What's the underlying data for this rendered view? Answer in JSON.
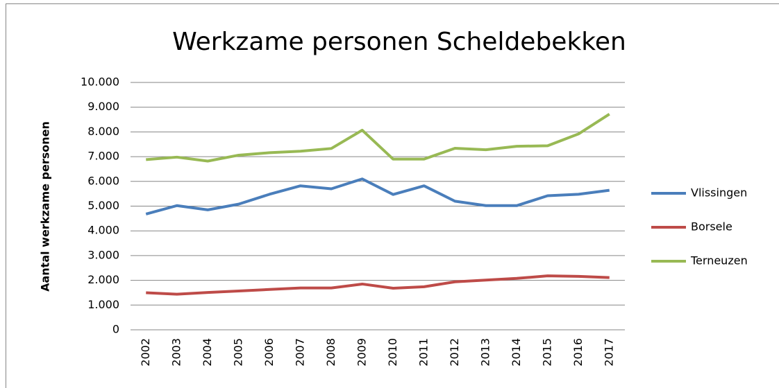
{
  "chart_data": {
    "type": "line",
    "title": "Werkzame personen Scheldebekken",
    "y_label": "Aantal werkzame  personen",
    "categories": [
      "2002",
      "2003",
      "2004",
      "2005",
      "2006",
      "2007",
      "2008",
      "2009",
      "2010",
      "2011",
      "2012",
      "2013",
      "2014",
      "2015",
      "2016",
      "2017"
    ],
    "series": [
      {
        "name": "Vlissingen",
        "color": "#4a7ebb",
        "values": [
          4680,
          5020,
          4850,
          5080,
          5480,
          5820,
          5700,
          6100,
          5470,
          5820,
          5200,
          5020,
          5020,
          5420,
          5480,
          5640
        ]
      },
      {
        "name": "Borsele",
        "color": "#be4b48",
        "values": [
          1500,
          1440,
          1510,
          1570,
          1630,
          1690,
          1690,
          1850,
          1680,
          1740,
          1940,
          2010,
          2080,
          2180,
          2160,
          2110
        ]
      },
      {
        "name": "Terneuzen",
        "color": "#98b954",
        "values": [
          6880,
          6980,
          6820,
          7060,
          7160,
          7220,
          7330,
          8070,
          6900,
          6900,
          7340,
          7280,
          7420,
          7440,
          7920,
          8720
        ]
      }
    ],
    "ylim": [
      0,
      10000
    ],
    "yticks": [
      0,
      {
        "value": 1000,
        "label": "1.000"
      },
      {
        "value": 2000,
        "label": "2.000"
      },
      {
        "value": 3000,
        "label": "3.000"
      },
      {
        "value": 4000,
        "label": "4.000"
      },
      {
        "value": 5000,
        "label": "5.000"
      },
      {
        "value": 6000,
        "label": "6.000"
      },
      {
        "value": 7000,
        "label": "7.000"
      },
      {
        "value": 8000,
        "label": "8.000"
      },
      {
        "value": 9000,
        "label": "9.000"
      },
      {
        "value": 10000,
        "label": "10.000"
      }
    ],
    "grid": true,
    "legend": "right"
  }
}
